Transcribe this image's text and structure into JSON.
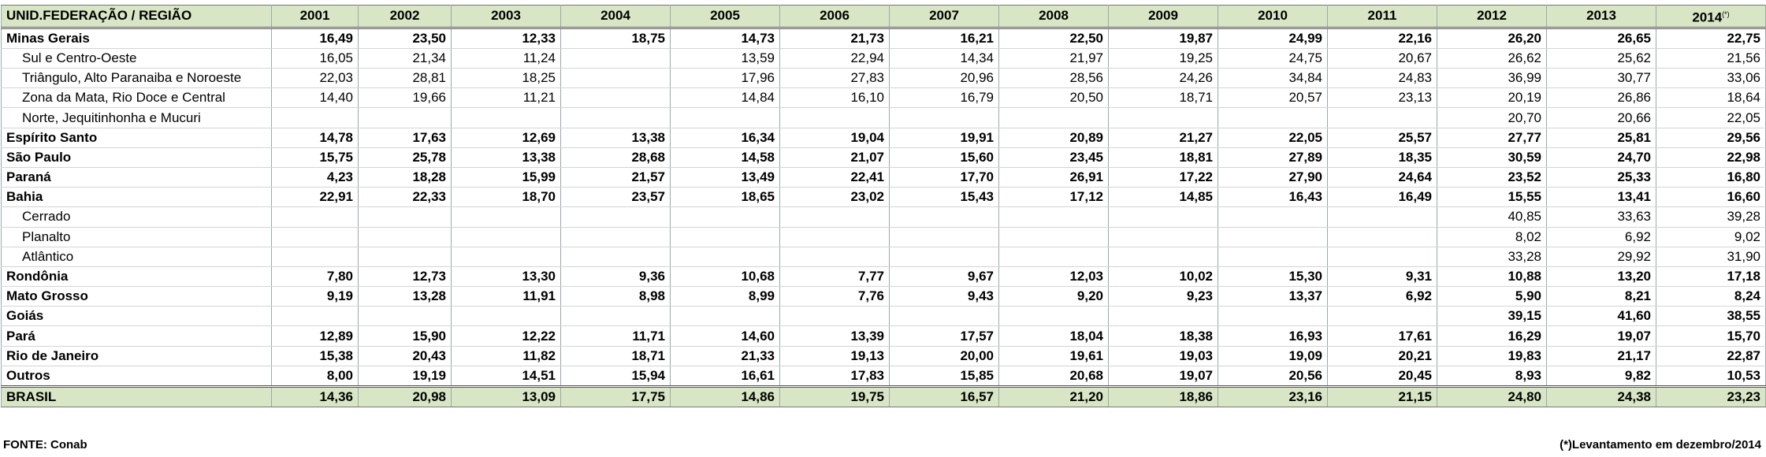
{
  "table": {
    "header": {
      "label": "UNID.FEDERAÇÃO / REGIÃO",
      "columns": [
        "2001",
        "2002",
        "2003",
        "2004",
        "2005",
        "2006",
        "2007",
        "2008",
        "2009",
        "2010",
        "2011",
        "2012",
        "2013",
        "2014"
      ],
      "last_column_marker": "(*)"
    },
    "rows": [
      {
        "name": "Minas Gerais",
        "level": 0,
        "values": [
          "16,49",
          "23,50",
          "12,33",
          "18,75",
          "14,73",
          "21,73",
          "16,21",
          "22,50",
          "19,87",
          "24,99",
          "22,16",
          "26,20",
          "26,65",
          "22,75"
        ]
      },
      {
        "name": "Sul e Centro-Oeste",
        "level": 1,
        "values": [
          "16,05",
          "21,34",
          "11,24",
          null,
          "13,59",
          "22,94",
          "14,34",
          "21,97",
          "19,25",
          "24,75",
          "20,67",
          "26,62",
          "25,62",
          "21,56"
        ]
      },
      {
        "name": "Triângulo, Alto Paranaiba e Noroeste",
        "level": 1,
        "values": [
          "22,03",
          "28,81",
          "18,25",
          null,
          "17,96",
          "27,83",
          "20,96",
          "28,56",
          "24,26",
          "34,84",
          "24,83",
          "36,99",
          "30,77",
          "33,06"
        ]
      },
      {
        "name": "Zona da Mata, Rio Doce e Central",
        "level": 1,
        "values": [
          "14,40",
          "19,66",
          "11,21",
          null,
          "14,84",
          "16,10",
          "16,79",
          "20,50",
          "18,71",
          "20,57",
          "23,13",
          "20,19",
          "26,86",
          "18,64"
        ]
      },
      {
        "name": "Norte, Jequitinhonha e Mucuri",
        "level": 1,
        "values": [
          null,
          null,
          null,
          null,
          null,
          null,
          null,
          null,
          null,
          null,
          null,
          "20,70",
          "20,66",
          "22,05"
        ]
      },
      {
        "name": "Espírito Santo",
        "level": 0,
        "values": [
          "14,78",
          "17,63",
          "12,69",
          "13,38",
          "16,34",
          "19,04",
          "19,91",
          "20,89",
          "21,27",
          "22,05",
          "25,57",
          "27,77",
          "25,81",
          "29,56"
        ]
      },
      {
        "name": "São Paulo",
        "level": 0,
        "values": [
          "15,75",
          "25,78",
          "13,38",
          "28,68",
          "14,58",
          "21,07",
          "15,60",
          "23,45",
          "18,81",
          "27,89",
          "18,35",
          "30,59",
          "24,70",
          "22,98"
        ]
      },
      {
        "name": "Paraná",
        "level": 0,
        "values": [
          "4,23",
          "18,28",
          "15,99",
          "21,57",
          "13,49",
          "22,41",
          "17,70",
          "26,91",
          "17,22",
          "27,90",
          "24,64",
          "23,52",
          "25,33",
          "16,80"
        ]
      },
      {
        "name": "Bahia",
        "level": 0,
        "values": [
          "22,91",
          "22,33",
          "18,70",
          "23,57",
          "18,65",
          "23,02",
          "15,43",
          "17,12",
          "14,85",
          "16,43",
          "16,49",
          "15,55",
          "13,41",
          "16,60"
        ]
      },
      {
        "name": "Cerrado",
        "level": 1,
        "values": [
          null,
          null,
          null,
          null,
          null,
          null,
          null,
          null,
          null,
          null,
          null,
          "40,85",
          "33,63",
          "39,28"
        ]
      },
      {
        "name": "Planalto",
        "level": 1,
        "values": [
          null,
          null,
          null,
          null,
          null,
          null,
          null,
          null,
          null,
          null,
          null,
          "8,02",
          "6,92",
          "9,02"
        ]
      },
      {
        "name": "Atlântico",
        "level": 1,
        "values": [
          null,
          null,
          null,
          null,
          null,
          null,
          null,
          null,
          null,
          null,
          null,
          "33,28",
          "29,92",
          "31,90"
        ]
      },
      {
        "name": "Rondônia",
        "level": 0,
        "values": [
          "7,80",
          "12,73",
          "13,30",
          "9,36",
          "10,68",
          "7,77",
          "9,67",
          "12,03",
          "10,02",
          "15,30",
          "9,31",
          "10,88",
          "13,20",
          "17,18"
        ]
      },
      {
        "name": "Mato Grosso",
        "level": 0,
        "values": [
          "9,19",
          "13,28",
          "11,91",
          "8,98",
          "8,99",
          "7,76",
          "9,43",
          "9,20",
          "9,23",
          "13,37",
          "6,92",
          "5,90",
          "8,21",
          "8,24"
        ]
      },
      {
        "name": "Goiás",
        "level": 0,
        "values": [
          null,
          null,
          null,
          null,
          null,
          null,
          null,
          null,
          null,
          null,
          null,
          "39,15",
          "41,60",
          "38,55"
        ]
      },
      {
        "name": "Pará",
        "level": 0,
        "values": [
          "12,89",
          "15,90",
          "12,22",
          "11,71",
          "14,60",
          "13,39",
          "17,57",
          "18,04",
          "18,38",
          "16,93",
          "17,61",
          "16,29",
          "19,07",
          "15,70"
        ]
      },
      {
        "name": "Rio de Janeiro",
        "level": 0,
        "values": [
          "15,38",
          "20,43",
          "11,82",
          "18,71",
          "21,33",
          "19,13",
          "20,00",
          "19,61",
          "19,03",
          "19,09",
          "20,21",
          "19,83",
          "21,17",
          "22,87"
        ]
      },
      {
        "name": "Outros",
        "level": 0,
        "values": [
          "8,00",
          "19,19",
          "14,51",
          "15,94",
          "16,61",
          "17,83",
          "15,85",
          "20,68",
          "19,07",
          "20,56",
          "20,45",
          "8,93",
          "9,82",
          "10,53"
        ]
      }
    ],
    "total": {
      "name": "BRASIL",
      "values": [
        "14,36",
        "20,98",
        "13,09",
        "17,75",
        "14,86",
        "19,75",
        "16,57",
        "21,20",
        "18,86",
        "23,16",
        "21,15",
        "24,80",
        "24,38",
        "23,23"
      ]
    }
  },
  "footer": {
    "source": "FONTE: Conab",
    "note": "(*)Levantamento em dezembro/2014"
  }
}
